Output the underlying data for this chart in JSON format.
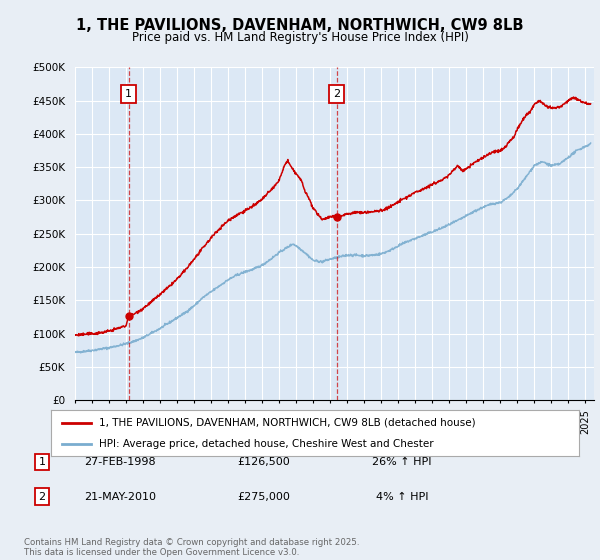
{
  "title": "1, THE PAVILIONS, DAVENHAM, NORTHWICH, CW9 8LB",
  "subtitle": "Price paid vs. HM Land Registry's House Price Index (HPI)",
  "xlim_start": 1995.0,
  "xlim_end": 2025.5,
  "ylim": [
    0,
    500000
  ],
  "yticks": [
    0,
    50000,
    100000,
    150000,
    200000,
    250000,
    300000,
    350000,
    400000,
    450000,
    500000
  ],
  "ytick_labels": [
    "£0",
    "£50K",
    "£100K",
    "£150K",
    "£200K",
    "£250K",
    "£300K",
    "£350K",
    "£400K",
    "£450K",
    "£500K"
  ],
  "background_color": "#e8eef5",
  "plot_bg_color": "#dce8f5",
  "grid_color": "#ffffff",
  "sale1_x": 1998.15,
  "sale1_y": 126500,
  "sale1_label": "1",
  "sale1_date": "27-FEB-1998",
  "sale1_price": "£126,500",
  "sale1_hpi": "26% ↑ HPI",
  "sale2_x": 2010.38,
  "sale2_y": 275000,
  "sale2_label": "2",
  "sale2_date": "21-MAY-2010",
  "sale2_price": "£275,000",
  "sale2_hpi": "4% ↑ HPI",
  "legend_line1": "1, THE PAVILIONS, DAVENHAM, NORTHWICH, CW9 8LB (detached house)",
  "legend_line2": "HPI: Average price, detached house, Cheshire West and Chester",
  "footer": "Contains HM Land Registry data © Crown copyright and database right 2025.\nThis data is licensed under the Open Government Licence v3.0.",
  "red_color": "#cc0000",
  "blue_color": "#7aadcf",
  "hpi_anchors_x": [
    1995.0,
    1995.5,
    1996.0,
    1996.5,
    1997.0,
    1997.5,
    1998.0,
    1998.5,
    1999.0,
    1999.5,
    2000.0,
    2000.5,
    2001.0,
    2001.5,
    2002.0,
    2002.5,
    2003.0,
    2003.5,
    2004.0,
    2004.5,
    2005.0,
    2005.5,
    2006.0,
    2006.5,
    2007.0,
    2007.5,
    2007.8,
    2008.0,
    2008.5,
    2009.0,
    2009.5,
    2010.0,
    2010.5,
    2011.0,
    2011.5,
    2012.0,
    2012.5,
    2013.0,
    2013.5,
    2014.0,
    2014.5,
    2015.0,
    2015.5,
    2016.0,
    2016.5,
    2017.0,
    2017.5,
    2018.0,
    2018.5,
    2019.0,
    2019.5,
    2020.0,
    2020.5,
    2021.0,
    2021.5,
    2022.0,
    2022.5,
    2023.0,
    2023.5,
    2024.0,
    2024.5,
    2025.3
  ],
  "hpi_anchors_y": [
    72000,
    73500,
    75000,
    77000,
    79000,
    82000,
    85000,
    89000,
    94000,
    101000,
    108000,
    116000,
    124000,
    132000,
    142000,
    154000,
    163000,
    172000,
    181000,
    188000,
    193000,
    197000,
    203000,
    212000,
    222000,
    230000,
    235000,
    232000,
    222000,
    210000,
    208000,
    212000,
    215000,
    218000,
    218000,
    217000,
    218000,
    220000,
    225000,
    232000,
    238000,
    243000,
    248000,
    253000,
    258000,
    264000,
    270000,
    277000,
    284000,
    290000,
    295000,
    297000,
    305000,
    318000,
    335000,
    353000,
    358000,
    352000,
    355000,
    365000,
    375000,
    385000
  ],
  "red_anchors_x": [
    1995.0,
    1995.5,
    1996.0,
    1996.5,
    1997.0,
    1997.5,
    1998.0,
    1998.15,
    1998.5,
    1999.0,
    1999.5,
    2000.0,
    2000.5,
    2001.0,
    2001.5,
    2002.0,
    2002.5,
    2003.0,
    2003.5,
    2004.0,
    2004.5,
    2005.0,
    2005.5,
    2006.0,
    2006.5,
    2007.0,
    2007.3,
    2007.5,
    2007.7,
    2008.0,
    2008.3,
    2008.5,
    2008.8,
    2009.0,
    2009.3,
    2009.5,
    2009.8,
    2010.0,
    2010.2,
    2010.38,
    2010.5,
    2010.8,
    2011.0,
    2011.5,
    2012.0,
    2012.5,
    2013.0,
    2013.5,
    2014.0,
    2014.5,
    2015.0,
    2015.5,
    2016.0,
    2016.5,
    2017.0,
    2017.3,
    2017.5,
    2017.8,
    2018.0,
    2018.5,
    2019.0,
    2019.5,
    2020.0,
    2020.3,
    2020.5,
    2020.8,
    2021.0,
    2021.3,
    2021.5,
    2021.8,
    2022.0,
    2022.3,
    2022.5,
    2022.8,
    2023.0,
    2023.5,
    2024.0,
    2024.3,
    2024.5,
    2024.8,
    2025.3
  ],
  "red_anchors_y": [
    98000,
    99000,
    100000,
    101500,
    104000,
    108000,
    112000,
    126500,
    130000,
    138000,
    148000,
    159000,
    170000,
    182000,
    196000,
    212000,
    228000,
    244000,
    258000,
    270000,
    278000,
    285000,
    292000,
    302000,
    315000,
    330000,
    352000,
    360000,
    350000,
    340000,
    330000,
    315000,
    300000,
    288000,
    278000,
    272000,
    274000,
    276000,
    275500,
    275000,
    276000,
    278000,
    280000,
    282000,
    282000,
    283000,
    285000,
    290000,
    298000,
    305000,
    312000,
    318000,
    324000,
    330000,
    338000,
    348000,
    352000,
    344000,
    348000,
    357000,
    365000,
    372000,
    375000,
    380000,
    388000,
    395000,
    408000,
    420000,
    428000,
    435000,
    445000,
    450000,
    445000,
    440000,
    438000,
    440000,
    450000,
    455000,
    452000,
    448000,
    445000
  ]
}
